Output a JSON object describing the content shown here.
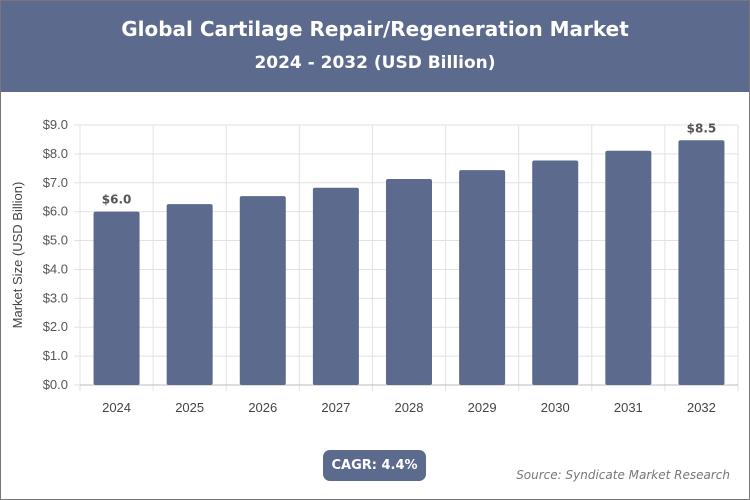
{
  "header": {
    "title": "Global Cartilage Repair/Regeneration Market",
    "subtitle": "2024 - 2032 (USD Billion)"
  },
  "chart_data": {
    "type": "bar",
    "categories": [
      "2024",
      "2025",
      "2026",
      "2027",
      "2028",
      "2029",
      "2030",
      "2031",
      "2032"
    ],
    "values": [
      6.0,
      6.26,
      6.54,
      6.83,
      7.13,
      7.44,
      7.77,
      8.11,
      8.47
    ],
    "data_labels": {
      "2024": "$6.0",
      "2032": "$8.5"
    },
    "ylabel": "Market Size (USD Billion)",
    "xlabel": "",
    "ylim": [
      0,
      9
    ],
    "yticks": [
      "$0.0",
      "$1.0",
      "$2.0",
      "$3.0",
      "$4.0",
      "$5.0",
      "$6.0",
      "$7.0",
      "$8.0",
      "$9.0"
    ],
    "grid": true,
    "bar_color": "#5b6a8d"
  },
  "badge": {
    "cagr": "CAGR: 4.4%"
  },
  "footer": {
    "source": "Source: Syndicate Market Research"
  }
}
